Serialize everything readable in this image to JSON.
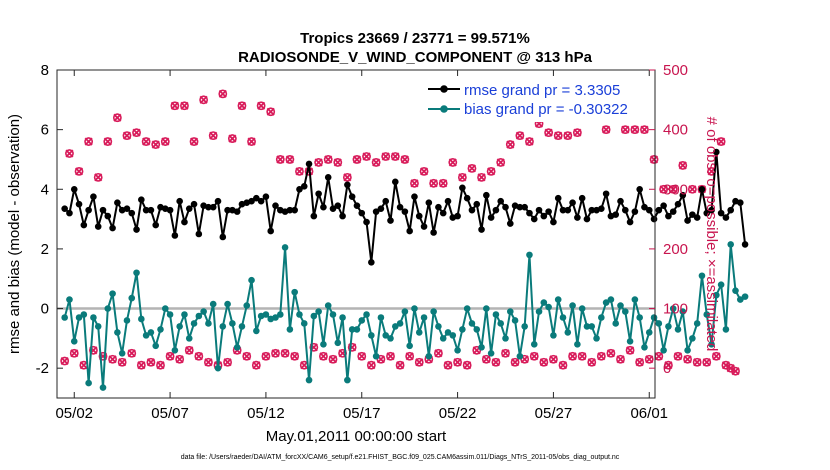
{
  "chart_data": {
    "type": "line",
    "title_line1": "Tropics 23669 / 23771 = 99.571%",
    "title_line2": "RADIOSONDE_V_WIND_COMPONENT @ 313 hPa",
    "xlabel": "May.01,2011 00:00:00 start",
    "ylabel_left": "rmse and bias (model - observation)",
    "ylabel_right": "# of obs: o=possible; ×=assimilated",
    "footnote": "data file: /Users/raeder/DAI/ATM_forcXX/CAM6_setup/f.e21.FHIST_BGC.f09_025.CAM6assim.011/Diags_NTrS_2011-05/obs_diag_output.nc",
    "xlim": [
      0.6,
      31.8
    ],
    "ylim_left": [
      -3,
      8
    ],
    "ylim_right": [
      -50,
      500
    ],
    "x_ticks": [
      {
        "value": 1.5,
        "label": "05/02"
      },
      {
        "value": 6.5,
        "label": "05/07"
      },
      {
        "value": 11.5,
        "label": "05/12"
      },
      {
        "value": 16.5,
        "label": "05/17"
      },
      {
        "value": 21.5,
        "label": "05/22"
      },
      {
        "value": 26.5,
        "label": "05/27"
      },
      {
        "value": 31.5,
        "label": "06/01"
      }
    ],
    "y_ticks_left": [
      {
        "value": -2,
        "label": "-2"
      },
      {
        "value": 0,
        "label": "0"
      },
      {
        "value": 2,
        "label": "2"
      },
      {
        "value": 4,
        "label": "4"
      },
      {
        "value": 6,
        "label": "6"
      },
      {
        "value": 8,
        "label": "8"
      }
    ],
    "y_ticks_right": [
      {
        "value": 0,
        "label": "0"
      },
      {
        "value": 100,
        "label": "100"
      },
      {
        "value": 200,
        "label": "200"
      },
      {
        "value": 300,
        "label": "300"
      },
      {
        "value": 400,
        "label": "400"
      },
      {
        "value": 500,
        "label": "500"
      }
    ],
    "zero_line": 0,
    "legend": [
      {
        "label": "rmse grand pr = 3.3305",
        "color": "#000000"
      },
      {
        "label": "bias grand pr = -0.30322",
        "color": "#0a7b7b"
      }
    ],
    "colors": {
      "rmse": "#000000",
      "bias": "#0a7b7b",
      "counts": "#d81b5a",
      "axis_right": "#c8154f",
      "zero_line": "#b4b4b4"
    },
    "x_start": 1.0,
    "x_step": 0.25,
    "series": [
      {
        "name": "rmse",
        "axis": "left",
        "values": [
          3.35,
          3.2,
          4.0,
          3.5,
          2.8,
          3.3,
          3.75,
          2.75,
          3.3,
          3.1,
          2.7,
          3.55,
          3.3,
          3.35,
          3.2,
          2.65,
          3.65,
          3.3,
          3.3,
          2.8,
          3.4,
          3.35,
          3.3,
          2.45,
          3.6,
          2.9,
          3.35,
          3.5,
          2.5,
          3.45,
          3.4,
          3.4,
          3.6,
          2.4,
          3.3,
          3.3,
          3.25,
          3.5,
          3.55,
          3.6,
          3.7,
          3.6,
          3.75,
          2.6,
          3.45,
          3.3,
          3.25,
          3.3,
          3.3,
          4.0,
          4.1,
          4.85,
          3.1,
          3.85,
          3.4,
          4.4,
          3.35,
          3.45,
          3.1,
          4.15,
          3.75,
          3.45,
          3.2,
          2.9,
          1.55,
          3.25,
          3.35,
          3.6,
          2.95,
          4.25,
          3.4,
          3.25,
          2.6,
          3.75,
          3.1,
          2.75,
          3.55,
          2.55,
          3.4,
          3.2,
          3.6,
          3.05,
          3.1,
          4.05,
          3.7,
          3.3,
          3.5,
          2.65,
          3.8,
          3.05,
          3.3,
          3.6,
          3.4,
          2.85,
          3.45,
          3.4,
          3.4,
          3.2,
          3.0,
          3.3,
          3.1,
          3.25,
          2.9,
          3.7,
          3.3,
          3.3,
          3.55,
          3.05,
          3.7,
          3.0,
          3.3,
          3.3,
          3.35,
          3.85,
          3.1,
          3.15,
          3.6,
          3.3,
          2.9,
          3.25,
          4.0,
          3.4,
          3.3,
          3.0,
          3.3,
          3.45,
          3.1,
          3.25,
          3.5,
          3.8,
          2.95,
          3.15,
          3.05,
          4.0,
          3.2,
          3.3,
          5.25,
          3.2,
          3.05,
          3.3,
          3.6,
          3.55,
          2.15
        ]
      },
      {
        "name": "bias",
        "axis": "left",
        "values": [
          -0.3,
          0.3,
          -1.1,
          -0.3,
          -0.2,
          -2.5,
          -0.3,
          -0.6,
          -2.65,
          0.0,
          0.5,
          -0.8,
          -1.5,
          -0.4,
          0.35,
          1.2,
          -0.35,
          -0.9,
          -0.8,
          -1.25,
          -0.7,
          0.0,
          -0.2,
          -1.4,
          -0.6,
          -0.2,
          -1.0,
          -0.5,
          -0.25,
          -0.1,
          -0.5,
          0.15,
          -2.0,
          -0.6,
          0.15,
          -0.5,
          -1.3,
          -0.6,
          0.1,
          0.95,
          -0.75,
          -0.25,
          -0.2,
          -0.35,
          -0.3,
          -0.2,
          2.05,
          -0.7,
          0.55,
          -0.2,
          -0.5,
          -2.4,
          -0.25,
          -0.1,
          -1.2,
          0.1,
          -0.2,
          -1.15,
          -0.3,
          -2.4,
          -0.7,
          -0.7,
          -0.4,
          -0.2,
          -0.9,
          -1.6,
          -0.3,
          -0.9,
          -1.0,
          -0.6,
          -0.5,
          -0.1,
          -1.25,
          0.0,
          -0.8,
          -0.3,
          -1.6,
          -0.1,
          -0.6,
          -1.0,
          -0.8,
          -0.9,
          -1.4,
          -0.7,
          0.0,
          -0.5,
          -0.7,
          -1.3,
          0.0,
          -1.5,
          -0.2,
          -0.5,
          -1.0,
          -0.1,
          -0.4,
          -1.6,
          -0.6,
          1.8,
          -1.2,
          -0.1,
          0.2,
          0.05,
          -0.9,
          0.3,
          -0.3,
          -0.8,
          0.1,
          -1.2,
          0.0,
          -0.6,
          -0.6,
          -1.0,
          -0.3,
          0.2,
          0.3,
          -0.5,
          0.1,
          -0.1,
          -1.1,
          0.3,
          -0.3,
          -1.3,
          -0.8,
          -0.3,
          -0.5,
          -1.4,
          -0.6,
          0.0,
          -0.7,
          -0.1,
          -1.4,
          -1.0,
          -0.5,
          1.1,
          -0.2,
          -1.2,
          0.45,
          0.8,
          -0.7,
          2.15,
          0.6,
          0.3,
          0.4
        ]
      },
      {
        "name": "possible",
        "axis": "right",
        "values": [
          12,
          360,
          25,
          330,
          5,
          380,
          30,
          320,
          20,
          380,
          15,
          420,
          10,
          390,
          25,
          395,
          5,
          380,
          10,
          375,
          5,
          380,
          20,
          440,
          15,
          440,
          30,
          380,
          20,
          450,
          10,
          390,
          5,
          460,
          10,
          385,
          30,
          440,
          20,
          380,
          5,
          440,
          20,
          430,
          25,
          350,
          25,
          350,
          20,
          330,
          5,
          330,
          35,
          345,
          20,
          350,
          15,
          345,
          25,
          320,
          35,
          350,
          20,
          355,
          5,
          345,
          15,
          355,
          20,
          355,
          5,
          350,
          20,
          310,
          10,
          330,
          15,
          310,
          25,
          310,
          5,
          345,
          10,
          320,
          5,
          335,
          30,
          320,
          15,
          330,
          10,
          345,
          25,
          375,
          10,
          390,
          15,
          380,
          20,
          410,
          10,
          395,
          15,
          390,
          5,
          390,
          20,
          395,
          20,
          445,
          10,
          450,
          20,
          400,
          25,
          445,
          15,
          400,
          30,
          400,
          10,
          400,
          15,
          350,
          20,
          300,
          5,
          300,
          20,
          340,
          15,
          300,
          10,
          300,
          10,
          330,
          20,
          380,
          5,
          0,
          -5
        ]
      },
      {
        "name": "assimilated",
        "axis": "right",
        "values": [
          12,
          360,
          25,
          330,
          5,
          380,
          30,
          320,
          20,
          380,
          15,
          420,
          10,
          390,
          25,
          395,
          5,
          380,
          10,
          375,
          5,
          380,
          20,
          440,
          15,
          440,
          30,
          380,
          20,
          450,
          10,
          390,
          5,
          460,
          10,
          385,
          30,
          440,
          20,
          380,
          5,
          440,
          20,
          430,
          25,
          350,
          25,
          350,
          20,
          330,
          5,
          330,
          35,
          345,
          20,
          350,
          15,
          345,
          25,
          320,
          35,
          350,
          20,
          355,
          5,
          345,
          15,
          355,
          20,
          355,
          5,
          350,
          20,
          310,
          10,
          330,
          15,
          310,
          25,
          310,
          5,
          345,
          10,
          320,
          5,
          335,
          30,
          320,
          15,
          330,
          10,
          345,
          25,
          375,
          10,
          390,
          15,
          380,
          20,
          410,
          10,
          395,
          15,
          390,
          5,
          390,
          20,
          395,
          20,
          445,
          10,
          450,
          20,
          400,
          25,
          445,
          15,
          400,
          30,
          400,
          10,
          400,
          15,
          350,
          20,
          300,
          5,
          300,
          20,
          340,
          15,
          300,
          10,
          300,
          10,
          330,
          20,
          380,
          5,
          0,
          -5
        ]
      }
    ]
  }
}
